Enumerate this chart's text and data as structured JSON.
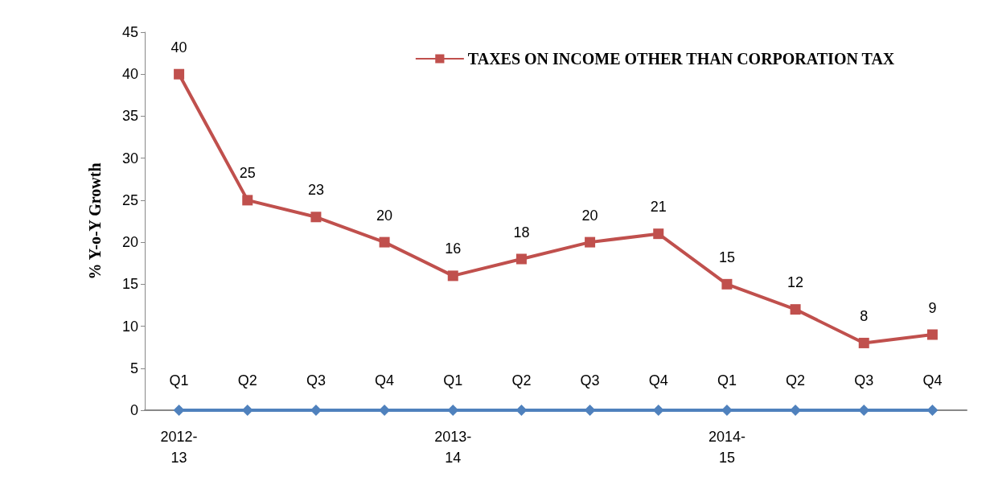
{
  "chart_data": {
    "type": "line",
    "ylabel": "% Y-o-Y Growth",
    "categories": [
      "Q1",
      "Q2",
      "Q3",
      "Q4",
      "Q1",
      "Q2",
      "Q3",
      "Q4",
      "Q1",
      "Q2",
      "Q3",
      "Q4"
    ],
    "series": [
      {
        "name": "TAXES ON INCOME OTHER THAN CORPORATION TAX",
        "color": "#c0504d",
        "marker": "square",
        "values": [
          40,
          25,
          23,
          20,
          16,
          18,
          20,
          21,
          15,
          12,
          8,
          9
        ],
        "value_labels": [
          "40",
          "25",
          "23",
          "20",
          "16",
          "18",
          "20",
          "21",
          "15",
          "12",
          "8",
          "9"
        ]
      },
      {
        "color": "#4f81bd",
        "marker": "diamond",
        "values": [
          0,
          0,
          0,
          0,
          0,
          0,
          0,
          0,
          0,
          0,
          0,
          0
        ]
      }
    ],
    "ylim": [
      0,
      45
    ],
    "yticks": [
      0,
      5,
      10,
      15,
      20,
      25,
      30,
      35,
      40,
      45
    ],
    "grid": false,
    "legend": "top right",
    "annotations": [
      "2012-13",
      "2013-14",
      "2014-15"
    ]
  }
}
